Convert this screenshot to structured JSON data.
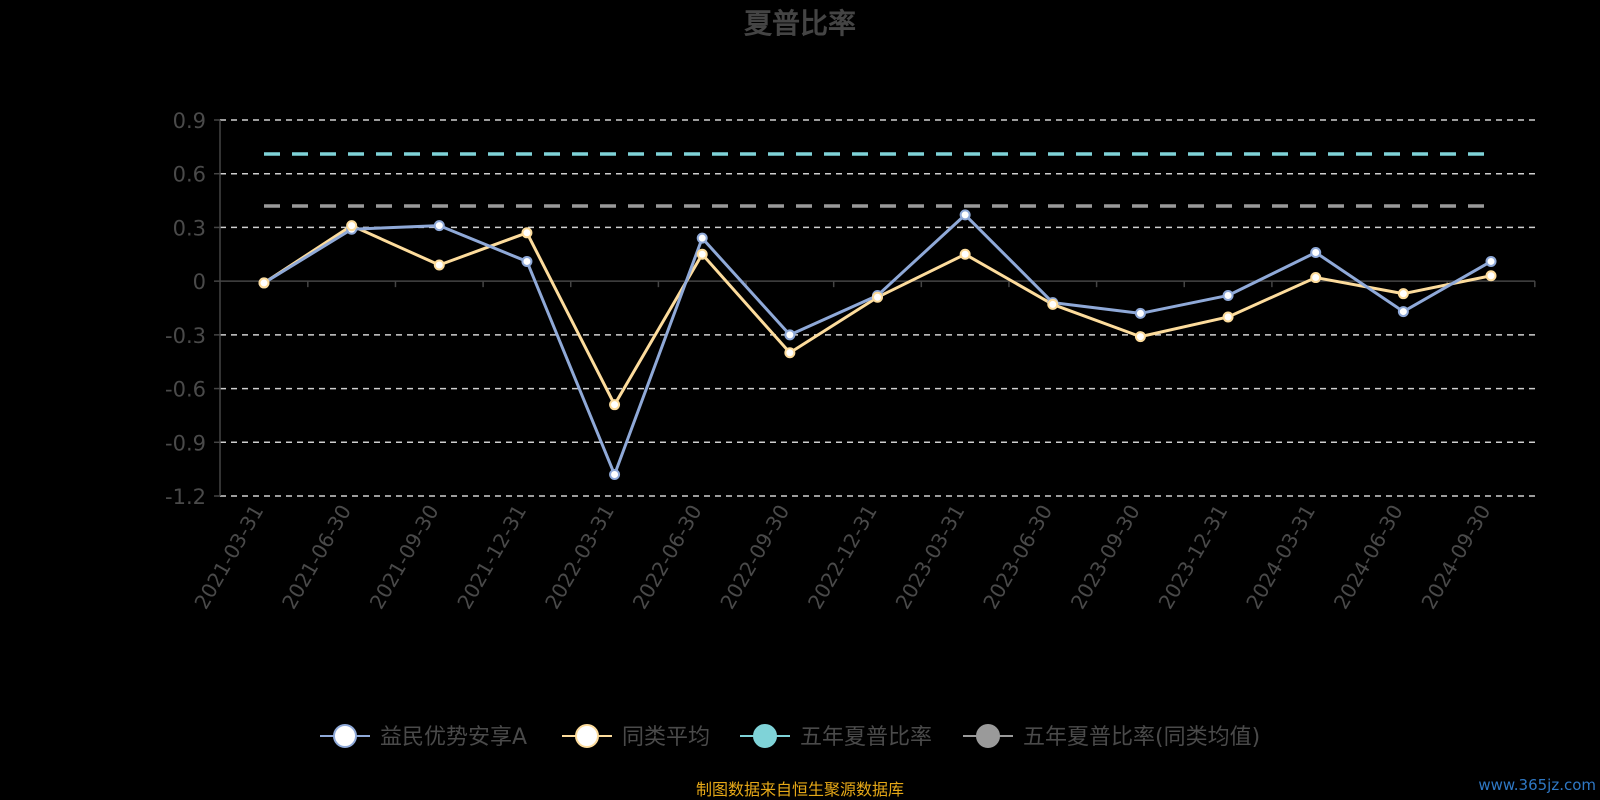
{
  "chart_data": {
    "type": "line",
    "title": "夏普比率",
    "categories": [
      "2021-03-31",
      "2021-06-30",
      "2021-09-30",
      "2021-12-31",
      "2022-03-31",
      "2022-06-30",
      "2022-09-30",
      "2022-12-31",
      "2023-03-31",
      "2023-06-30",
      "2023-09-30",
      "2023-12-31",
      "2024-03-31",
      "2024-06-30",
      "2024-09-30"
    ],
    "ylim": [
      -1.2,
      0.9
    ],
    "yticks": [
      0.9,
      0.6,
      0.3,
      0,
      -0.3,
      -0.6,
      -0.9,
      -1.2
    ],
    "grid": true,
    "legend_position": "bottom",
    "series": [
      {
        "name": "益民优势安享A",
        "color": "#8fa9d8",
        "values": [
          -0.01,
          0.29,
          0.31,
          0.11,
          -1.08,
          0.24,
          -0.3,
          -0.08,
          0.37,
          -0.12,
          -0.18,
          -0.08,
          0.16,
          -0.17,
          0.11
        ]
      },
      {
        "name": "同类平均",
        "color": "#fddc9c",
        "values": [
          -0.01,
          0.31,
          0.09,
          0.27,
          -0.69,
          0.15,
          -0.4,
          -0.09,
          0.15,
          -0.13,
          -0.31,
          -0.2,
          0.02,
          -0.07,
          0.03
        ]
      },
      {
        "name": "五年夏普比率",
        "color": "#7fd3d8",
        "dashed": true,
        "value": 0.71
      },
      {
        "name": "五年夏普比率(同类均值)",
        "color": "#9a9a9a",
        "dashed": true,
        "value": 0.42
      }
    ]
  },
  "source_text": "制图数据来自恒生聚源数据库",
  "source_color": "#e6a817",
  "watermark": "www.365jz.com"
}
